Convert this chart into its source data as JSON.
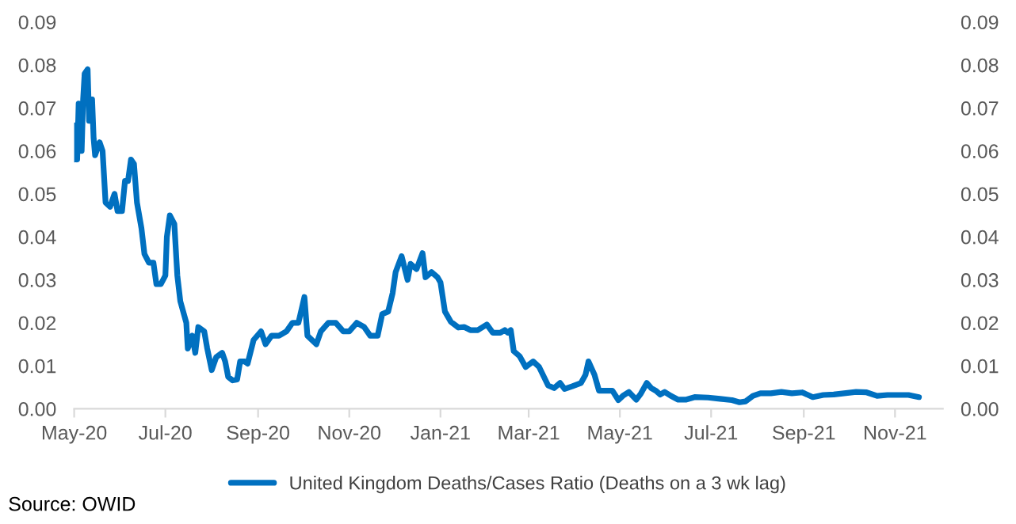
{
  "chart_data": {
    "type": "line",
    "x": [
      "2020-05-01",
      "2020-05-02",
      "2020-05-03",
      "2020-05-04",
      "2020-05-06",
      "2020-05-07",
      "2020-05-08",
      "2020-05-10",
      "2020-05-11",
      "2020-05-13",
      "2020-05-14",
      "2020-05-15",
      "2020-05-18",
      "2020-05-20",
      "2020-05-22",
      "2020-05-25",
      "2020-05-28",
      "2020-05-30",
      "2020-06-02",
      "2020-06-04",
      "2020-06-06",
      "2020-06-08",
      "2020-06-10",
      "2020-06-12",
      "2020-06-15",
      "2020-06-17",
      "2020-06-20",
      "2020-06-23",
      "2020-06-25",
      "2020-06-28",
      "2020-07-01",
      "2020-07-02",
      "2020-07-04",
      "2020-07-07",
      "2020-07-09",
      "2020-07-11",
      "2020-07-15",
      "2020-07-16",
      "2020-07-19",
      "2020-07-21",
      "2020-07-23",
      "2020-07-27",
      "2020-07-29",
      "2020-08-01",
      "2020-08-04",
      "2020-08-08",
      "2020-08-10",
      "2020-08-12",
      "2020-08-15",
      "2020-08-18",
      "2020-08-20",
      "2020-08-23",
      "2020-08-25",
      "2020-08-29",
      "2020-09-03",
      "2020-09-06",
      "2020-09-10",
      "2020-09-15",
      "2020-09-20",
      "2020-09-24",
      "2020-09-28",
      "2020-10-02",
      "2020-10-04",
      "2020-10-10",
      "2020-10-13",
      "2020-10-18",
      "2020-10-23",
      "2020-10-28",
      "2020-11-01",
      "2020-11-06",
      "2020-11-11",
      "2020-11-15",
      "2020-11-20",
      "2020-11-23",
      "2020-11-27",
      "2020-11-30",
      "2020-12-02",
      "2020-12-06",
      "2020-12-10",
      "2020-12-12",
      "2020-12-16",
      "2020-12-20",
      "2020-12-22",
      "2020-12-26",
      "2020-12-30",
      "2021-01-01",
      "2021-01-04",
      "2021-01-08",
      "2021-01-13",
      "2021-01-17",
      "2021-01-21",
      "2021-01-26",
      "2021-02-01",
      "2021-02-05",
      "2021-02-10",
      "2021-02-13",
      "2021-02-15",
      "2021-02-17",
      "2021-02-19",
      "2021-02-23",
      "2021-02-27",
      "2021-03-04",
      "2021-03-08",
      "2021-03-14",
      "2021-03-18",
      "2021-03-22",
      "2021-03-25",
      "2021-03-30",
      "2021-04-05",
      "2021-04-08",
      "2021-04-10",
      "2021-04-14",
      "2021-04-17",
      "2021-04-22",
      "2021-04-26",
      "2021-04-30",
      "2021-05-03",
      "2021-05-07",
      "2021-05-12",
      "2021-05-15",
      "2021-05-19",
      "2021-05-22",
      "2021-05-25",
      "2021-05-28",
      "2021-05-31",
      "2021-06-04",
      "2021-06-09",
      "2021-06-14",
      "2021-06-20",
      "2021-06-29",
      "2021-07-07",
      "2021-07-15",
      "2021-07-20",
      "2021-07-24",
      "2021-07-29",
      "2021-08-03",
      "2021-08-10",
      "2021-08-17",
      "2021-08-24",
      "2021-08-31",
      "2021-09-07",
      "2021-09-14",
      "2021-09-21",
      "2021-09-28",
      "2021-10-06",
      "2021-10-13",
      "2021-10-20",
      "2021-10-27",
      "2021-11-03",
      "2021-11-10",
      "2021-11-17"
    ],
    "series": [
      {
        "name": "United Kingdom Deaths/Cases Ratio (Deaths on a 3 wk lag)",
        "color": "#0070c0",
        "values": [
          0.058,
          0.066,
          0.058,
          0.071,
          0.06,
          0.072,
          0.078,
          0.079,
          0.067,
          0.072,
          0.063,
          0.059,
          0.062,
          0.06,
          0.048,
          0.047,
          0.05,
          0.046,
          0.046,
          0.053,
          0.053,
          0.058,
          0.057,
          0.048,
          0.042,
          0.036,
          0.034,
          0.034,
          0.029,
          0.029,
          0.031,
          0.04,
          0.045,
          0.043,
          0.031,
          0.025,
          0.02,
          0.014,
          0.017,
          0.013,
          0.019,
          0.018,
          0.014,
          0.009,
          0.012,
          0.013,
          0.011,
          0.0074,
          0.0066,
          0.0068,
          0.011,
          0.011,
          0.0105,
          0.016,
          0.018,
          0.015,
          0.017,
          0.017,
          0.018,
          0.02,
          0.02,
          0.026,
          0.017,
          0.015,
          0.018,
          0.02,
          0.02,
          0.018,
          0.018,
          0.02,
          0.019,
          0.017,
          0.017,
          0.022,
          0.0226,
          0.0269,
          0.0318,
          0.0355,
          0.03,
          0.0337,
          0.0325,
          0.0362,
          0.0306,
          0.0318,
          0.0306,
          0.0294,
          0.0226,
          0.0202,
          0.0189,
          0.019,
          0.0183,
          0.0183,
          0.0196,
          0.0177,
          0.0177,
          0.0183,
          0.0177,
          0.0183,
          0.0134,
          0.0122,
          0.0097,
          0.011,
          0.0097,
          0.0054,
          0.0048,
          0.006,
          0.0046,
          0.0052,
          0.006,
          0.0079,
          0.011,
          0.0079,
          0.0042,
          0.0042,
          0.0042,
          0.002,
          0.003,
          0.0039,
          0.0021,
          0.0035,
          0.006,
          0.0048,
          0.0042,
          0.0033,
          0.0039,
          0.003,
          0.0021,
          0.0021,
          0.0027,
          0.0026,
          0.0023,
          0.002,
          0.0015,
          0.0017,
          0.003,
          0.0036,
          0.0036,
          0.0039,
          0.0036,
          0.0038,
          0.0027,
          0.0032,
          0.0033,
          0.0036,
          0.0039,
          0.0038,
          0.003,
          0.0032,
          0.0032,
          0.0032,
          0.0027
        ]
      }
    ],
    "xlim": [
      "2020-05-01",
      "2021-12-03"
    ],
    "xticks": [
      {
        "value": "2020-05-01",
        "label": "May-20"
      },
      {
        "value": "2020-07-01",
        "label": "Jul-20"
      },
      {
        "value": "2020-09-01",
        "label": "Sep-20"
      },
      {
        "value": "2020-11-01",
        "label": "Nov-20"
      },
      {
        "value": "2021-01-01",
        "label": "Jan-21"
      },
      {
        "value": "2021-03-01",
        "label": "Mar-21"
      },
      {
        "value": "2021-05-01",
        "label": "May-21"
      },
      {
        "value": "2021-07-01",
        "label": "Jul-21"
      },
      {
        "value": "2021-09-01",
        "label": "Sep-21"
      },
      {
        "value": "2021-11-01",
        "label": "Nov-21"
      }
    ],
    "ylim": [
      0,
      0.09
    ],
    "yticks": [
      {
        "value": 0,
        "label": "0.00"
      },
      {
        "value": 0.01,
        "label": "0.01"
      },
      {
        "value": 0.02,
        "label": "0.02"
      },
      {
        "value": 0.03,
        "label": "0.03"
      },
      {
        "value": 0.04,
        "label": "0.04"
      },
      {
        "value": 0.05,
        "label": "0.05"
      },
      {
        "value": 0.06,
        "label": "0.06"
      },
      {
        "value": 0.07,
        "label": "0.07"
      },
      {
        "value": 0.08,
        "label": "0.08"
      },
      {
        "value": 0.09,
        "label": "0.09"
      }
    ],
    "y2lim": [
      0,
      0.09
    ],
    "y2ticks": [
      {
        "value": 0,
        "label": "0.00"
      },
      {
        "value": 0.01,
        "label": "0.01"
      },
      {
        "value": 0.02,
        "label": "0.02"
      },
      {
        "value": 0.03,
        "label": "0.03"
      },
      {
        "value": 0.04,
        "label": "0.04"
      },
      {
        "value": 0.05,
        "label": "0.05"
      },
      {
        "value": 0.06,
        "label": "0.06"
      },
      {
        "value": 0.07,
        "label": "0.07"
      },
      {
        "value": 0.08,
        "label": "0.08"
      },
      {
        "value": 0.09,
        "label": "0.09"
      }
    ],
    "grid": false,
    "legend": "bottom",
    "marker": "none",
    "line_style": "solid",
    "annotations": [
      "Source: OWID"
    ]
  }
}
